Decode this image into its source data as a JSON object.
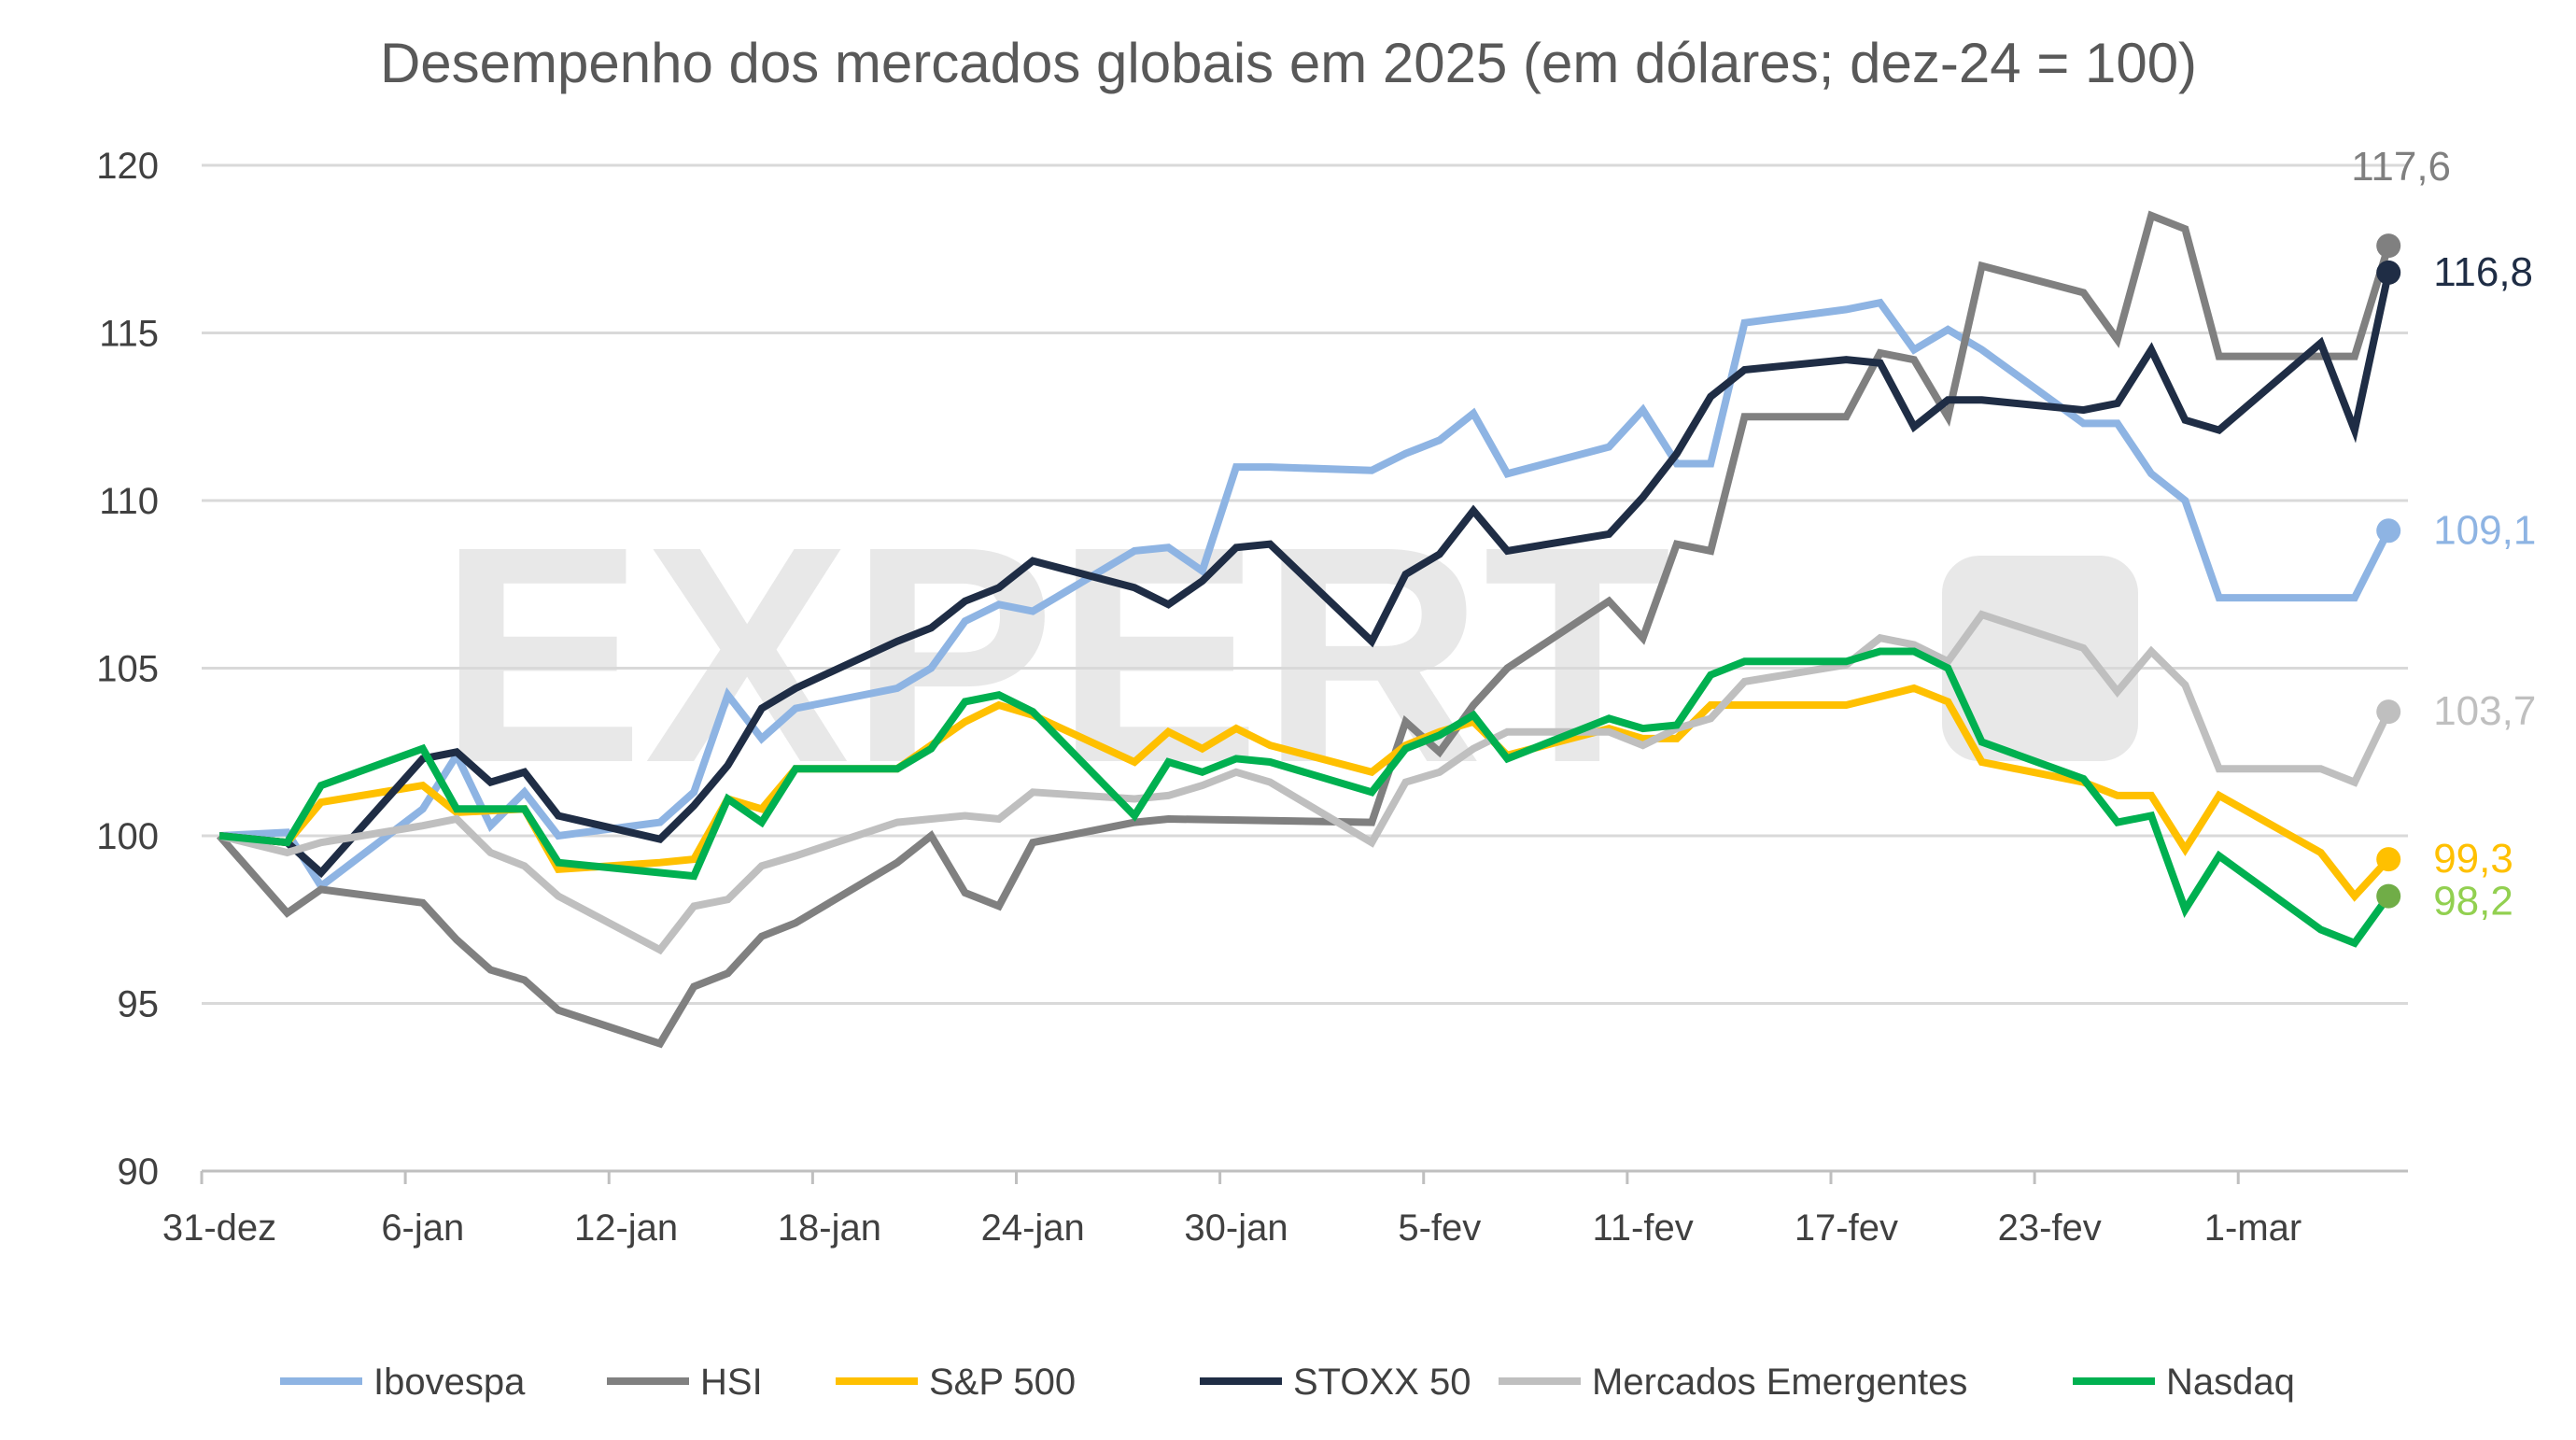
{
  "chart_data": {
    "type": "line",
    "title": "Desempenho dos mercados globais em 2025 (em dólares; dez-24 = 100)",
    "xlabel": "",
    "ylabel": "",
    "x_unit": "days since 31-dez",
    "xlim": [
      0,
      65
    ],
    "ylim": [
      90,
      120
    ],
    "yticks": [
      90,
      95,
      100,
      105,
      110,
      115,
      120
    ],
    "xticks": [
      {
        "day": 0,
        "label": "31-dez"
      },
      {
        "day": 6,
        "label": "6-jan"
      },
      {
        "day": 12,
        "label": "12-jan"
      },
      {
        "day": 18,
        "label": "18-jan"
      },
      {
        "day": 24,
        "label": "24-jan"
      },
      {
        "day": 30,
        "label": "30-jan"
      },
      {
        "day": 36,
        "label": "5-fev"
      },
      {
        "day": 42,
        "label": "11-fev"
      },
      {
        "day": 48,
        "label": "17-fev"
      },
      {
        "day": 54,
        "label": "23-fev"
      },
      {
        "day": 60,
        "label": "1-mar"
      }
    ],
    "grid": true,
    "legend_position": "bottom",
    "watermark": "EXPERT XP",
    "series": [
      {
        "name": "Ibovespa",
        "color": "#8EB4E3",
        "end_label": "109,1",
        "end_color": "#8EB4E3",
        "dot_color": "#8EB4E3",
        "x": [
          0,
          2,
          3,
          6,
          7,
          8,
          9,
          10,
          13,
          14,
          15,
          16,
          17,
          20,
          21,
          22,
          23,
          24,
          27,
          28,
          29,
          30,
          31,
          34,
          35,
          36,
          37,
          38,
          41,
          42,
          43,
          44,
          45,
          48,
          49,
          50,
          51,
          52,
          55,
          56,
          57,
          58,
          59,
          63,
          64
        ],
        "y": [
          100,
          100.1,
          98.5,
          100.8,
          102.4,
          100.3,
          101.3,
          100,
          100.4,
          101.3,
          104.2,
          102.9,
          103.8,
          104.4,
          105,
          106.4,
          106.9,
          106.7,
          108.5,
          108.6,
          107.9,
          111,
          111,
          110.9,
          111.4,
          111.8,
          112.6,
          110.8,
          111.6,
          112.7,
          111.1,
          111.1,
          115.3,
          115.7,
          115.9,
          114.5,
          115.1,
          114.5,
          112.3,
          112.3,
          110.8,
          110,
          107.1,
          107.1,
          109.1
        ]
      },
      {
        "name": "HSI",
        "color": "#808080",
        "end_label": "117,6",
        "end_color": "#808080",
        "dot_color": "#808080",
        "x": [
          0,
          2,
          3,
          6,
          7,
          8,
          9,
          10,
          13,
          14,
          15,
          16,
          17,
          20,
          21,
          22,
          23,
          24,
          27,
          28,
          34,
          35,
          36,
          37,
          38,
          41,
          42,
          43,
          44,
          45,
          48,
          49,
          50,
          51,
          52,
          55,
          56,
          57,
          58,
          59,
          63,
          64
        ],
        "y": [
          100,
          97.7,
          98.4,
          98,
          96.9,
          96,
          95.7,
          94.8,
          93.8,
          95.5,
          95.9,
          97,
          97.4,
          99.2,
          100,
          98.3,
          97.9,
          99.8,
          100.4,
          100.5,
          100.4,
          103.4,
          102.5,
          103.9,
          105,
          107,
          105.9,
          108.7,
          108.5,
          112.5,
          112.5,
          114.4,
          114.2,
          112.5,
          117,
          116.2,
          114.8,
          118.5,
          118.1,
          114.3,
          114.3,
          117.6
        ]
      },
      {
        "name": "S&P 500",
        "color": "#FFC000",
        "end_label": "99,3",
        "end_color": "#FFC000",
        "dot_color": "#FFC000",
        "x": [
          0,
          2,
          3,
          6,
          7,
          9,
          10,
          13,
          14,
          15,
          16,
          17,
          20,
          21,
          22,
          23,
          24,
          27,
          28,
          29,
          30,
          31,
          34,
          35,
          36,
          37,
          38,
          41,
          42,
          43,
          44,
          48,
          50,
          51,
          52,
          55,
          56,
          57,
          58,
          59,
          62,
          63,
          64
        ],
        "y": [
          100,
          99.8,
          101,
          101.5,
          100.7,
          100.8,
          99,
          99.2,
          99.3,
          101.1,
          100.8,
          102,
          102,
          102.7,
          103.4,
          103.9,
          103.6,
          102.2,
          103.1,
          102.6,
          103.2,
          102.7,
          101.9,
          102.7,
          103.1,
          103.4,
          102.4,
          103.2,
          102.9,
          102.9,
          103.9,
          103.9,
          104.4,
          104,
          102.2,
          101.6,
          101.2,
          101.2,
          99.6,
          101.2,
          99.5,
          98.2,
          99.3
        ]
      },
      {
        "name": "STOXX 50",
        "color": "#1F2D45",
        "end_label": "116,8",
        "end_color": "#1F2D45",
        "dot_color": "#1F2D45",
        "x": [
          0,
          2,
          3,
          6,
          7,
          8,
          9,
          10,
          13,
          14,
          15,
          16,
          17,
          20,
          21,
          22,
          23,
          24,
          27,
          28,
          29,
          30,
          31,
          34,
          35,
          36,
          37,
          38,
          41,
          42,
          43,
          44,
          45,
          48,
          49,
          50,
          51,
          52,
          55,
          56,
          57,
          58,
          59,
          62,
          63,
          64
        ],
        "y": [
          100,
          99.8,
          98.9,
          102.3,
          102.5,
          101.6,
          101.9,
          100.6,
          99.9,
          100.9,
          102.1,
          103.8,
          104.4,
          105.8,
          106.2,
          107,
          107.4,
          108.2,
          107.4,
          106.9,
          107.6,
          108.6,
          108.7,
          105.8,
          107.8,
          108.4,
          109.7,
          108.5,
          109,
          110.1,
          111.4,
          113.1,
          113.9,
          114.2,
          114.1,
          112.2,
          113,
          113,
          112.7,
          112.9,
          114.5,
          112.4,
          112.1,
          114.7,
          112.1,
          116.8
        ]
      },
      {
        "name": "Mercados Emergentes",
        "color": "#BFBFBF",
        "end_label": "103,7",
        "end_color": "#BFBFBF",
        "dot_color": "#BFBFBF",
        "x": [
          0,
          2,
          3,
          6,
          7,
          8,
          9,
          10,
          13,
          14,
          15,
          16,
          17,
          20,
          21,
          22,
          23,
          24,
          27,
          28,
          29,
          30,
          31,
          34,
          35,
          36,
          37,
          38,
          41,
          42,
          43,
          44,
          45,
          48,
          49,
          50,
          51,
          52,
          55,
          56,
          57,
          58,
          59,
          62,
          63,
          64
        ],
        "y": [
          100,
          99.5,
          99.8,
          100.3,
          100.5,
          99.5,
          99.1,
          98.2,
          96.6,
          97.9,
          98.1,
          99.1,
          99.4,
          100.4,
          100.5,
          100.6,
          100.5,
          101.3,
          101.1,
          101.2,
          101.5,
          101.9,
          101.6,
          99.8,
          101.6,
          101.9,
          102.6,
          103.1,
          103.1,
          102.7,
          103.2,
          103.5,
          104.6,
          105.1,
          105.9,
          105.7,
          105.2,
          106.6,
          105.6,
          104.3,
          105.5,
          104.5,
          102,
          102,
          101.6,
          103.7
        ]
      },
      {
        "name": "Nasdaq",
        "color": "#00B050",
        "end_label": "98,2",
        "end_color": "#92D050",
        "dot_color": "#70AD47",
        "x": [
          0,
          2,
          3,
          6,
          7,
          9,
          10,
          13,
          14,
          15,
          16,
          17,
          20,
          21,
          22,
          23,
          24,
          27,
          28,
          29,
          30,
          31,
          34,
          35,
          36,
          37,
          38,
          41,
          42,
          43,
          44,
          45,
          48,
          49,
          50,
          51,
          52,
          55,
          56,
          57,
          58,
          59,
          62,
          63,
          64
        ],
        "y": [
          100,
          99.8,
          101.5,
          102.6,
          100.8,
          100.8,
          99.2,
          98.9,
          98.8,
          101.1,
          100.4,
          102,
          102,
          102.6,
          104,
          104.2,
          103.7,
          100.6,
          102.2,
          101.9,
          102.3,
          102.2,
          101.3,
          102.6,
          103,
          103.6,
          102.3,
          103.5,
          103.2,
          103.3,
          104.8,
          105.2,
          105.2,
          105.5,
          105.5,
          105,
          102.8,
          101.7,
          100.4,
          100.6,
          97.8,
          99.4,
          97.2,
          96.8,
          98.2
        ]
      }
    ]
  }
}
